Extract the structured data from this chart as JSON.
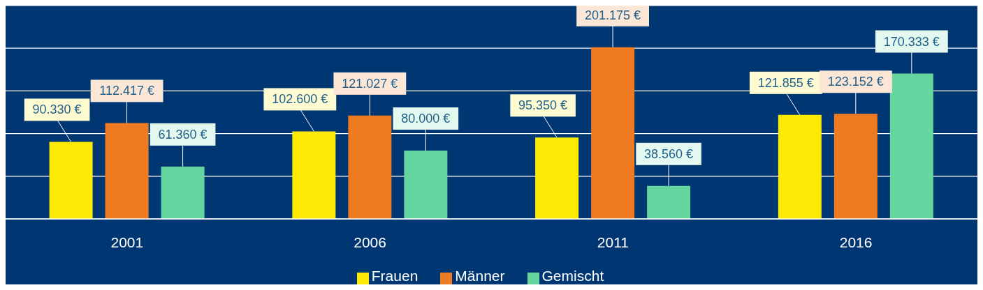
{
  "chart_data": {
    "type": "bar",
    "categories": [
      "2001",
      "2006",
      "2011",
      "2016"
    ],
    "series": [
      {
        "name": "Frauen",
        "color": "#fcea05",
        "values": [
          90330,
          102600,
          95350,
          121855
        ],
        "value_labels": [
          "90.330 €",
          "102.600 €",
          "95.350 €",
          "121.855 €"
        ]
      },
      {
        "name": "Männer",
        "color": "#ee7b22",
        "values": [
          112417,
          121027,
          201175,
          123152
        ],
        "value_labels": [
          "112.417 €",
          "121.027 €",
          "201.175 €",
          "123.152 €"
        ]
      },
      {
        "name": "Gemischt",
        "color": "#66d6a0",
        "values": [
          61360,
          80000,
          38560,
          170333
        ],
        "value_labels": [
          "61.360 €",
          "80.000 €",
          "38.560 €",
          "170.333 €"
        ]
      }
    ],
    "ylim": [
      0,
      250000
    ],
    "grid": "y",
    "legend": "bottom",
    "tick_labels": "x"
  }
}
